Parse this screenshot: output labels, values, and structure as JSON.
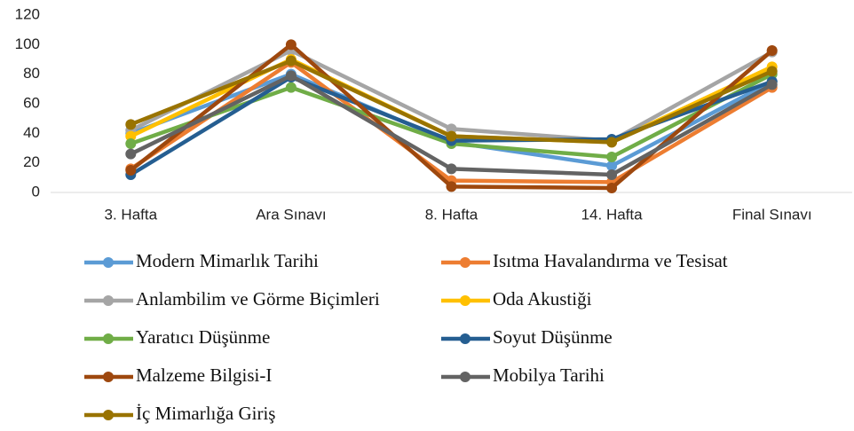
{
  "chart_data": {
    "type": "line",
    "categories": [
      "3. Hafta",
      "Ara Sınavı",
      "8. Hafta",
      "14. Hafta",
      "Final Sınavı"
    ],
    "ylim": [
      0,
      120
    ],
    "yticks": [
      0,
      20,
      40,
      60,
      80,
      100,
      120
    ],
    "grid": false,
    "legend": "bottom",
    "series": [
      {
        "name": "Modern Mimarlık Tarihi",
        "color": "#5b9bd5",
        "values": [
          40,
          80,
          34,
          18,
          75
        ]
      },
      {
        "name": "Isıtma Havalandırma ve Tesisat",
        "color": "#ed7d31",
        "values": [
          16,
          88,
          8,
          7,
          71
        ]
      },
      {
        "name": "Anlambilim ve Görme Biçimleri",
        "color": "#a5a5a5",
        "values": [
          42,
          96,
          43,
          35,
          95
        ]
      },
      {
        "name": "Oda Akustiği",
        "color": "#ffc000",
        "values": [
          38,
          90,
          38,
          34,
          85
        ]
      },
      {
        "name": "Yaratıcı Düşünme",
        "color": "#70ad47",
        "values": [
          33,
          71,
          33,
          24,
          80
        ]
      },
      {
        "name": "Soyut Düşünme",
        "color": "#255e91",
        "values": [
          12,
          78,
          35,
          36,
          75
        ]
      },
      {
        "name": "Malzeme Bilgisi-I",
        "color": "#9e480e",
        "values": [
          15,
          100,
          4,
          3,
          96
        ]
      },
      {
        "name": "Mobilya Tarihi",
        "color": "#636363",
        "values": [
          26,
          79,
          16,
          12,
          73
        ]
      },
      {
        "name": "İç Mimarlığa Giriş",
        "color": "#997300",
        "values": [
          46,
          89,
          38,
          34,
          82
        ]
      }
    ]
  }
}
